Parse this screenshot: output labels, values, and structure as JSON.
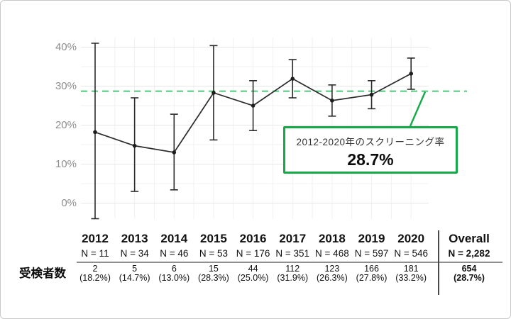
{
  "chart_data": {
    "type": "line",
    "x_years": [
      "2012",
      "2013",
      "2014",
      "2015",
      "2016",
      "2017",
      "2018",
      "2019",
      "2020"
    ],
    "series": [
      {
        "name": "スクリーニング率",
        "values": [
          18.2,
          14.7,
          13.0,
          28.3,
          25.0,
          31.9,
          26.3,
          27.8,
          33.2
        ],
        "ci_low": [
          -4.0,
          3.0,
          3.4,
          16.2,
          18.6,
          27.0,
          22.3,
          24.2,
          29.2
        ],
        "ci_high": [
          41.0,
          27.0,
          22.8,
          40.4,
          31.4,
          36.8,
          30.3,
          31.4,
          37.2
        ]
      }
    ],
    "yticks": [
      {
        "value": 0,
        "label": "0%"
      },
      {
        "value": 10,
        "label": "10%"
      },
      {
        "value": 20,
        "label": "20%"
      },
      {
        "value": 30,
        "label": "30%"
      },
      {
        "value": 40,
        "label": "40%"
      }
    ],
    "ylim": [
      -6,
      43
    ],
    "grid": true,
    "legend": "none",
    "reference_line": {
      "value": 28.7,
      "style": "dashed"
    },
    "annotation": {
      "title": "2012-2020年のスクリーニング率",
      "value": "28.7%"
    }
  },
  "colors": {
    "line": "#2b2b2b",
    "point": "#1d1d1d",
    "grid_major": "#e6e6e6",
    "grid_minor": "#f1f1f1",
    "tick_label": "#8c8c8c",
    "dashed_green": "#4cc77b",
    "callout_green": "#14aa47"
  },
  "table": {
    "row_label": "受検者数",
    "columns": [
      {
        "year": "2012",
        "n": "N = 11",
        "count": "2",
        "pct": "(18.2%)",
        "bold": false
      },
      {
        "year": "2013",
        "n": "N = 34",
        "count": "5",
        "pct": "(14.7%)",
        "bold": false
      },
      {
        "year": "2014",
        "n": "N = 46",
        "count": "6",
        "pct": "(13.0%)",
        "bold": false
      },
      {
        "year": "2015",
        "n": "N = 53",
        "count": "15",
        "pct": "(28.3%)",
        "bold": false
      },
      {
        "year": "2016",
        "n": "N = 176",
        "count": "44",
        "pct": "(25.0%)",
        "bold": false
      },
      {
        "year": "2017",
        "n": "N = 351",
        "count": "112",
        "pct": "(31.9%)",
        "bold": false
      },
      {
        "year": "2018",
        "n": "N = 468",
        "count": "123",
        "pct": "(26.3%)",
        "bold": false
      },
      {
        "year": "2019",
        "n": "N = 597",
        "count": "166",
        "pct": "(27.8%)",
        "bold": false
      },
      {
        "year": "2020",
        "n": "N = 546",
        "count": "181",
        "pct": "(33.2%)",
        "bold": false
      },
      {
        "year": "Overall",
        "n": "N = 2,282",
        "count": "654",
        "pct": "(28.7%)",
        "bold": true
      }
    ]
  }
}
